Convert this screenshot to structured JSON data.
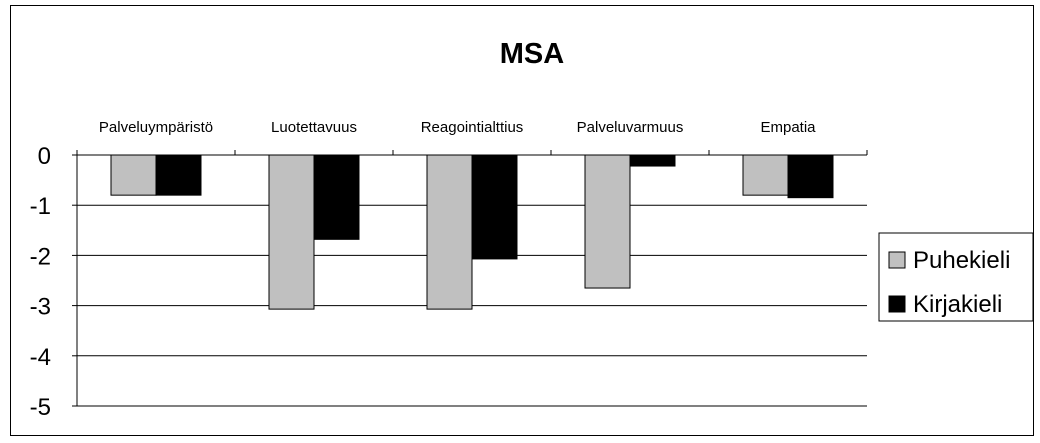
{
  "chart_data": {
    "type": "bar",
    "title": "MSA",
    "xlabel": "",
    "ylabel": "",
    "categories": [
      "Palveluympäristö",
      "Luotettavuus",
      "Reagointialttius",
      "Palveluvarmuus",
      "Empatia"
    ],
    "series": [
      {
        "name": "Puhekieli",
        "color": "#c0c0c0",
        "values": [
          -0.8,
          -3.07,
          -3.07,
          -2.65,
          -0.8
        ]
      },
      {
        "name": "Kirjakieli",
        "color": "#000000",
        "values": [
          -0.8,
          -1.68,
          -2.07,
          -0.22,
          -0.85
        ]
      }
    ],
    "ylim": [
      -5,
      0
    ],
    "yticks": [
      "0",
      "-1",
      "-2",
      "-3",
      "-4",
      "-5"
    ],
    "grid": true,
    "legend_position": "right",
    "category_axis_position": "top"
  }
}
